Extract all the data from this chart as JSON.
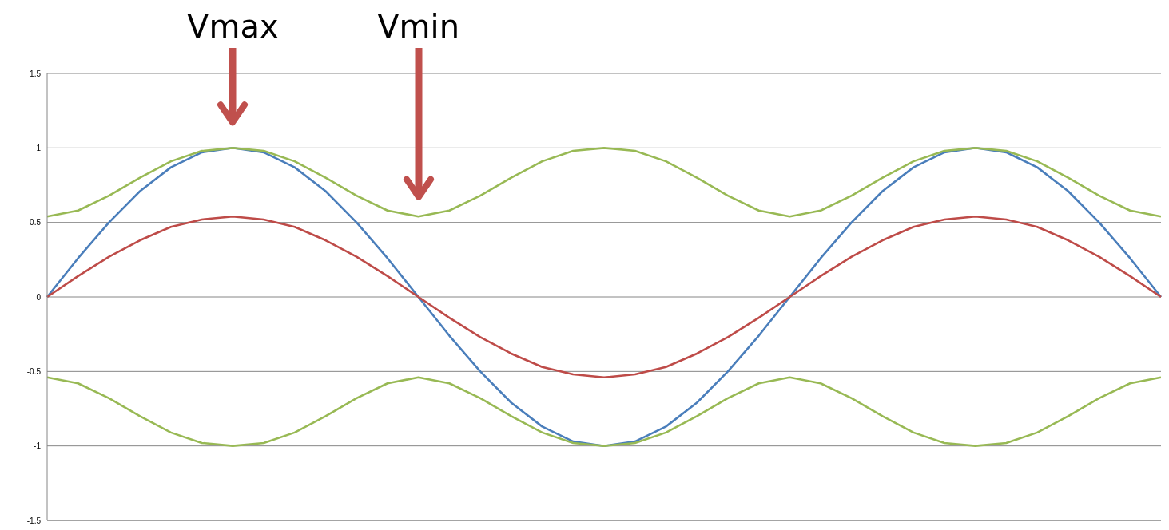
{
  "chart_data": {
    "type": "line",
    "categories": [
      null,
      null,
      null,
      null,
      null,
      null,
      null,
      null,
      null,
      null,
      null,
      null,
      null,
      null,
      null,
      null,
      null,
      null,
      null,
      null,
      null,
      null,
      null,
      null,
      null,
      null,
      null,
      null,
      null,
      null,
      null,
      null,
      null,
      null,
      null,
      null,
      null
    ],
    "series": [
      {
        "color": "#4a7ebb",
        "values": [
          0,
          0.26,
          0.5,
          0.71,
          0.87,
          0.97,
          1,
          0.97,
          0.87,
          0.71,
          0.5,
          0.26,
          0,
          -0.26,
          -0.5,
          -0.71,
          -0.87,
          -0.97,
          -1,
          -0.97,
          -0.87,
          -0.71,
          -0.5,
          -0.26,
          0,
          0.26,
          0.5,
          0.71,
          0.87,
          0.97,
          1,
          0.97,
          0.87,
          0.71,
          0.5,
          0.26,
          0
        ]
      },
      {
        "color": "#be4b48",
        "values": [
          0,
          0.14,
          0.27,
          0.38,
          0.47,
          0.52,
          0.54,
          0.52,
          0.47,
          0.38,
          0.27,
          0.14,
          0,
          -0.14,
          -0.27,
          -0.38,
          -0.47,
          -0.52,
          -0.54,
          -0.52,
          -0.47,
          -0.38,
          -0.27,
          -0.14,
          0,
          0.14,
          0.27,
          0.38,
          0.47,
          0.52,
          0.54,
          0.52,
          0.47,
          0.38,
          0.27,
          0.14,
          0
        ]
      },
      {
        "color": "#98b954",
        "values": [
          0.54,
          0.58,
          0.68,
          0.8,
          0.91,
          0.98,
          1,
          0.98,
          0.91,
          0.8,
          0.68,
          0.58,
          0.54,
          0.58,
          0.68,
          0.8,
          0.91,
          0.98,
          1,
          0.98,
          0.91,
          0.8,
          0.68,
          0.58,
          0.54,
          0.58,
          0.68,
          0.8,
          0.91,
          0.98,
          1,
          0.98,
          0.91,
          0.8,
          0.68,
          0.58,
          0.54
        ]
      },
      {
        "color": "#98b954",
        "values": [
          -0.54,
          -0.58,
          -0.68,
          -0.8,
          -0.91,
          -0.98,
          -1,
          -0.98,
          -0.91,
          -0.8,
          -0.68,
          -0.58,
          -0.54,
          -0.58,
          -0.68,
          -0.8,
          -0.91,
          -0.98,
          -1,
          -0.98,
          -0.91,
          -0.8,
          -0.68,
          -0.58,
          -0.54,
          -0.58,
          -0.68,
          -0.8,
          -0.91,
          -0.98,
          -1,
          -0.98,
          -0.91,
          -0.8,
          -0.68,
          -0.58,
          -0.54
        ]
      }
    ],
    "ylim": [
      -1.5,
      1.5
    ],
    "yticks": [
      -1.5,
      -1,
      -0.5,
      0,
      0.5,
      1,
      1.5
    ],
    "grid": "y",
    "tick_labels": "y",
    "marker": "none",
    "line_style": "solid",
    "annotations": [
      "Vmax",
      "Vmin"
    ]
  }
}
